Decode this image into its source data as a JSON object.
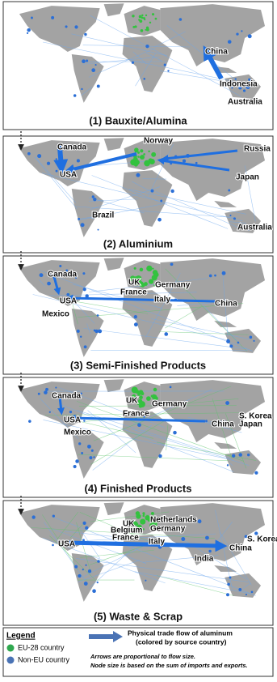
{
  "panels": [
    {
      "title": "(1) Bauxite/Alumina",
      "labels": [
        "China",
        "Indonesia",
        "Australia"
      ]
    },
    {
      "title": "(2) Aluminium",
      "labels": [
        "Canada",
        "Norway",
        "Russia",
        "USA",
        "Japan",
        "Brazil",
        "Australia"
      ]
    },
    {
      "title": "(3) Semi-Finished Products",
      "labels": [
        "Canada",
        "UK",
        "Germany",
        "France",
        "USA",
        "Italy",
        "China",
        "Mexico"
      ]
    },
    {
      "title": "(4) Finished Products",
      "labels": [
        "Canada",
        "UK",
        "Germany",
        "France",
        "USA",
        "China",
        "S. Korea",
        "Japan",
        "Mexico"
      ]
    },
    {
      "title": "(5) Waste & Scrap",
      "labels": [
        "UK",
        "Netherlands",
        "Belgium",
        "Germany",
        "France",
        "Italy",
        "USA",
        "China",
        "S. Korea",
        "India"
      ]
    }
  ],
  "legend": {
    "title": "Legend",
    "items": [
      "EU-28 country",
      "Non-EU country"
    ],
    "arrow_text": [
      "Physical trade flow of aluminum",
      "(colored by source country)"
    ],
    "notes": [
      "Arrows are proportional to flow size.",
      "Node size is based on the sum of imports and exports."
    ]
  }
}
